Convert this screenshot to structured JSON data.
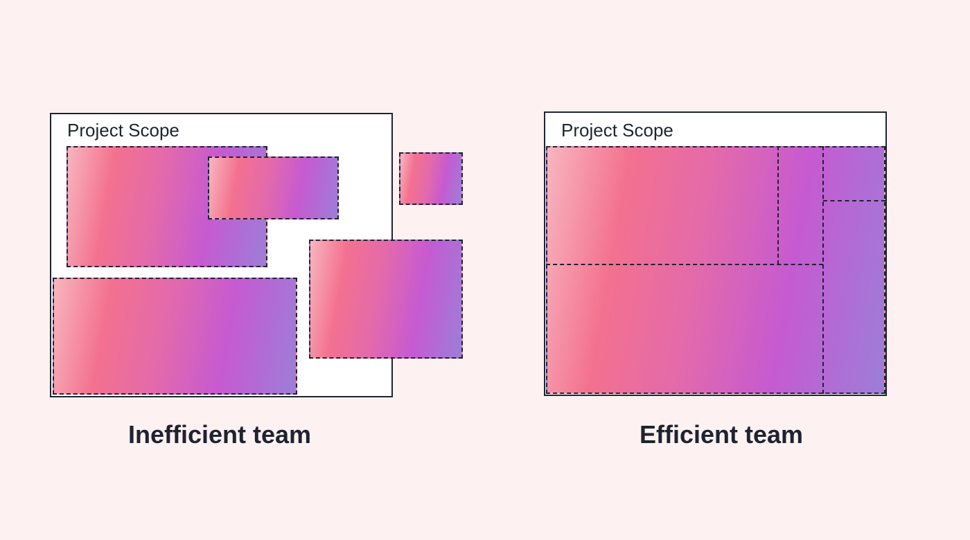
{
  "left_panel": {
    "scope_label": "Project Scope",
    "caption": "Inefficient team"
  },
  "right_panel": {
    "scope_label": "Project Scope",
    "caption": "Efficient team"
  },
  "colors": {
    "background": "#fdf2f1",
    "outline": "#1e2330",
    "gradient": [
      "#f8b6bf",
      "#f3718f",
      "#e36aab",
      "#c65ad1",
      "#9c7ed8"
    ]
  }
}
